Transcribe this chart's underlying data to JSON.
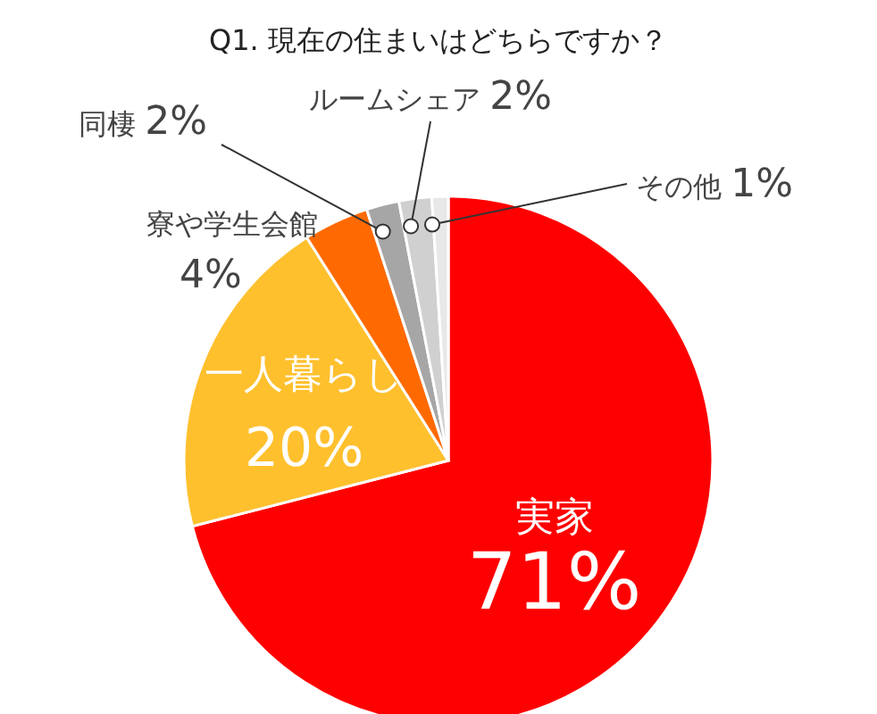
{
  "chart_data": {
    "type": "pie",
    "title": "Q1. 現在の住まいはどちらですか？",
    "categories": [
      "実家",
      "一人暮らし",
      "寮や学生会館",
      "同棲",
      "ルームシェア",
      "その他"
    ],
    "values": [
      71,
      20,
      4,
      2,
      2,
      1
    ],
    "value_labels": [
      "71%",
      "20%",
      "4%",
      "2%",
      "2%",
      "1%"
    ],
    "colors": [
      "#ff0000",
      "#ffc02e",
      "#ff6a00",
      "#a6a6a6",
      "#d0d0d0",
      "#e8e8e8"
    ],
    "legend": false
  }
}
